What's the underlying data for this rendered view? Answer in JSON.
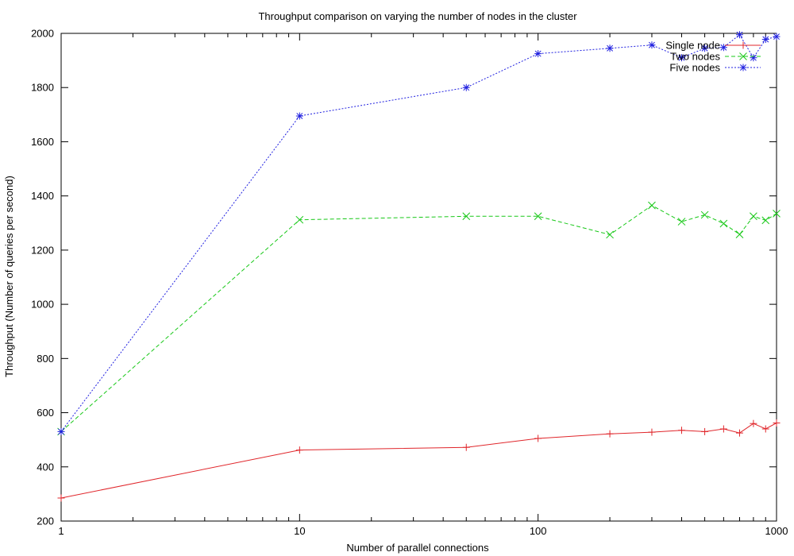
{
  "chart_data": {
    "type": "line",
    "title": "Throughput comparison on varying the number of nodes in the cluster",
    "xlabel": "Number of parallel connections",
    "ylabel": "Throughput (Number of queries per second)",
    "x_scale": "log",
    "xlim": [
      1,
      1000
    ],
    "ylim": [
      200,
      2000
    ],
    "x_ticks": [
      1,
      10,
      100,
      1000
    ],
    "x_tick_labels": [
      "1",
      "10",
      "100",
      "1000"
    ],
    "y_ticks": [
      200,
      400,
      600,
      800,
      1000,
      1200,
      1400,
      1600,
      1800,
      2000
    ],
    "y_tick_labels": [
      "200",
      "400",
      "600",
      "800",
      "1000",
      "1200",
      "1400",
      "1600",
      "1800",
      "2000"
    ],
    "legend_position": "top-right",
    "grid": false,
    "x": [
      1,
      10,
      50,
      100,
      200,
      300,
      400,
      500,
      600,
      700,
      800,
      900,
      1000
    ],
    "series": [
      {
        "name": "Single node",
        "color": "#e0262b",
        "marker": "plus",
        "dash": "solid",
        "values": [
          285,
          462,
          472,
          505,
          522,
          528,
          535,
          530,
          540,
          525,
          560,
          540,
          562
        ]
      },
      {
        "name": "Two nodes",
        "color": "#18c818",
        "marker": "cross",
        "dash": "dashed",
        "values": [
          530,
          1312,
          1325,
          1325,
          1257,
          1365,
          1305,
          1330,
          1298,
          1258,
          1325,
          1310,
          1335
        ]
      },
      {
        "name": "Five nodes",
        "color": "#2020e0",
        "marker": "star",
        "dash": "dotted",
        "values": [
          530,
          1695,
          1800,
          1925,
          1945,
          1957,
          1910,
          1945,
          1948,
          1995,
          1910,
          1978,
          1988
        ]
      }
    ]
  }
}
